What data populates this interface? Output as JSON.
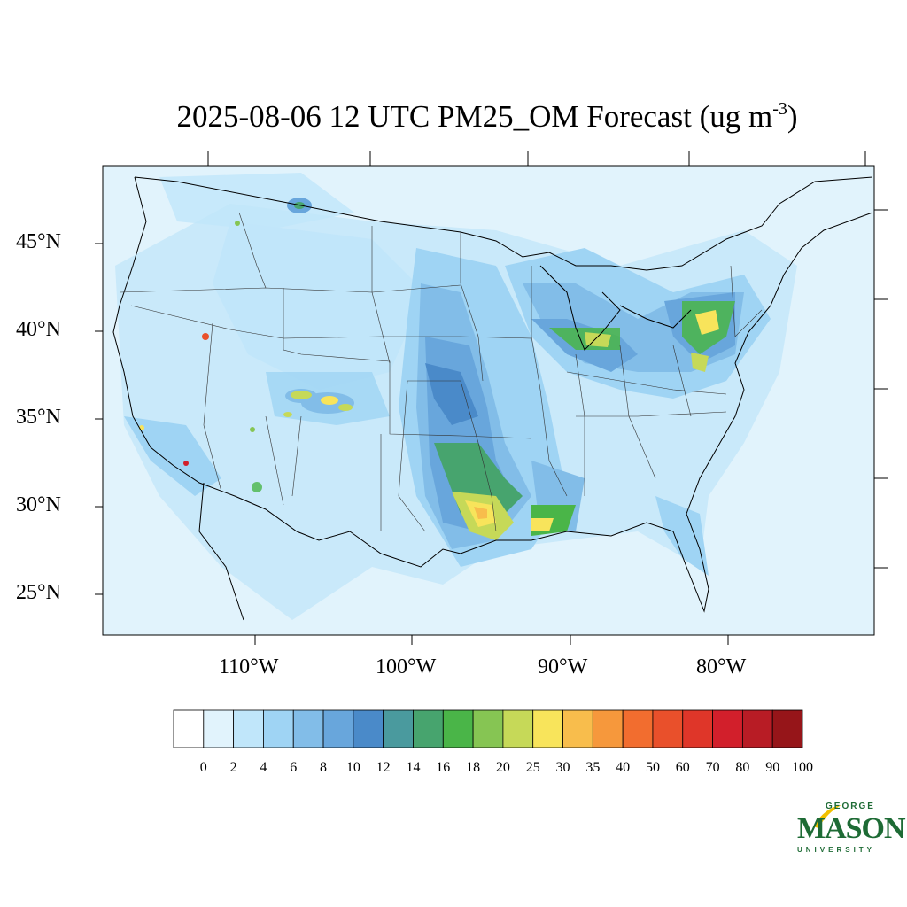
{
  "title": {
    "main": "2025-08-06 12 UTC PM25_OM Forecast (ug m",
    "superscript": "-3",
    "close": ")"
  },
  "map": {
    "projection": "lambert-conformal",
    "region": "CONUS",
    "lat_ticks": [
      "45°N",
      "40°N",
      "35°N",
      "30°N",
      "25°N"
    ],
    "lon_ticks": [
      "110°W",
      "100°W",
      "90°W",
      "80°W"
    ]
  },
  "colorbar": {
    "labels": [
      "0",
      "2",
      "4",
      "6",
      "8",
      "10",
      "12",
      "14",
      "16",
      "18",
      "20",
      "25",
      "30",
      "35",
      "40",
      "50",
      "60",
      "70",
      "80",
      "90",
      "100"
    ],
    "colors": [
      "#ffffff",
      "#e1f3fc",
      "#c0e6fa",
      "#9fd4f4",
      "#82bde8",
      "#68a6dc",
      "#4a8ac9",
      "#4a9a9e",
      "#47a46e",
      "#4ab548",
      "#86c553",
      "#c6d958",
      "#f8e45b",
      "#f8bd4c",
      "#f6983c",
      "#f26d2f",
      "#e9502b",
      "#df3629",
      "#d21f2b",
      "#b81c25",
      "#961519"
    ]
  },
  "logo": {
    "top": "GEORGE",
    "main": "MASON",
    "bottom": "UNIVERSITY",
    "green": "#1e6b35",
    "gold": "#f2c100"
  }
}
